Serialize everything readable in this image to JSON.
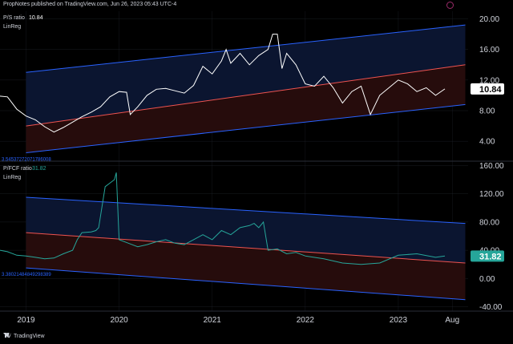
{
  "header": {
    "text": "PropNotes published on TradingView.com, Jun 26, 2023 05:43 UTC-4"
  },
  "footer": {
    "brand": "TradingView"
  },
  "colors": {
    "background": "#000000",
    "line": "#ffffff",
    "line2": "#26a69a",
    "upper_band": "#2962ff",
    "mid_band": "#ef5350",
    "upper_fill": "#0b1530",
    "lower_fill": "#260c0c",
    "grid": "#2a2e39",
    "axis_text": "#d1d4dc"
  },
  "chart_data": [
    {
      "type": "line",
      "title": "P/S ratio",
      "value_label": "10.84",
      "indicator": "LinReg",
      "lower_band_label": "3.54537272071786008",
      "y_ticks": [
        4,
        8,
        12,
        16,
        20
      ],
      "y_tick_labels": [
        "4.00",
        "8.00",
        "12.00",
        "16.00",
        "20.00"
      ],
      "ylim": [
        1.5,
        21
      ],
      "current_value": 10.84,
      "band": {
        "start": 2019.0,
        "end": 2023.72,
        "upper": [
          13.0,
          19.2
        ],
        "mid": [
          6.0,
          14.0
        ],
        "lower": [
          2.5,
          8.8
        ]
      },
      "series": [
        {
          "x": [
            2018.72,
            2018.8,
            2018.9,
            2019.0,
            2019.1,
            2019.2,
            2019.3,
            2019.4,
            2019.5,
            2019.6,
            2019.7,
            2019.8,
            2019.9,
            2020.0,
            2020.08,
            2020.12,
            2020.2,
            2020.3,
            2020.4,
            2020.5,
            2020.6,
            2020.7,
            2020.8,
            2020.9,
            2021.0,
            2021.1,
            2021.15,
            2021.2,
            2021.3,
            2021.4,
            2021.5,
            2021.6,
            2021.65,
            2021.7,
            2021.75,
            2021.8,
            2021.9,
            2022.0,
            2022.1,
            2022.2,
            2022.3,
            2022.4,
            2022.5,
            2022.6,
            2022.7,
            2022.8,
            2022.9,
            2023.0,
            2023.1,
            2023.2,
            2023.3,
            2023.4,
            2023.5
          ],
          "y": [
            9.9,
            9.8,
            8.2,
            7.3,
            6.8,
            5.9,
            5.2,
            5.8,
            6.5,
            7.2,
            7.8,
            8.5,
            9.8,
            10.5,
            10.4,
            7.5,
            8.5,
            10.0,
            10.8,
            10.9,
            10.6,
            10.3,
            11.3,
            13.8,
            12.8,
            14.5,
            16.0,
            14.2,
            15.5,
            14.0,
            15.2,
            16.0,
            18.0,
            18.0,
            13.5,
            15.5,
            14.0,
            11.5,
            11.2,
            12.5,
            11.0,
            9.0,
            10.5,
            11.2,
            7.5,
            10.0,
            11.0,
            12.0,
            11.5,
            10.5,
            11.0,
            10.0,
            10.84
          ]
        }
      ]
    },
    {
      "type": "line",
      "title": "P/FCF ratio",
      "value_label": "31.82",
      "indicator": "LinReg",
      "lower_band_label": "3.38021484849298389",
      "y_ticks": [
        -40,
        0,
        40,
        80,
        120,
        160
      ],
      "y_tick_labels": [
        "-40.00",
        "0.00",
        "40.00",
        "80.00",
        "120.00",
        "160.00"
      ],
      "ylim": [
        -45,
        165
      ],
      "current_value": 31.82,
      "band": {
        "start": 2019.0,
        "end": 2023.72,
        "upper": [
          115,
          78
        ],
        "mid": [
          65,
          22
        ],
        "lower": [
          15,
          -30
        ]
      },
      "series": [
        {
          "x": [
            2018.72,
            2018.8,
            2018.9,
            2019.0,
            2019.1,
            2019.2,
            2019.3,
            2019.4,
            2019.5,
            2019.55,
            2019.6,
            2019.7,
            2019.75,
            2019.78,
            2019.85,
            2019.9,
            2019.95,
            2019.97,
            2020.0,
            2020.1,
            2020.2,
            2020.3,
            2020.4,
            2020.5,
            2020.6,
            2020.7,
            2020.8,
            2020.9,
            2021.0,
            2021.1,
            2021.2,
            2021.3,
            2021.4,
            2021.45,
            2021.5,
            2021.55,
            2021.6,
            2021.7,
            2021.8,
            2021.9,
            2022.0,
            2022.2,
            2022.4,
            2022.6,
            2022.8,
            2023.0,
            2023.2,
            2023.4,
            2023.5
          ],
          "y": [
            40,
            38,
            33,
            32,
            30,
            28,
            29,
            35,
            40,
            55,
            65,
            66,
            68,
            72,
            130,
            135,
            140,
            150,
            55,
            50,
            45,
            48,
            52,
            55,
            50,
            48,
            55,
            62,
            55,
            68,
            62,
            72,
            75,
            78,
            72,
            80,
            40,
            42,
            35,
            37,
            32,
            28,
            22,
            20,
            22,
            33,
            35,
            30,
            31.82
          ]
        }
      ]
    }
  ],
  "x_axis": {
    "ticks": [
      2019,
      2020,
      2021,
      2022,
      2023,
      2023.58
    ],
    "labels": [
      "2019",
      "2020",
      "2021",
      "2022",
      "2023",
      "Aug"
    ]
  }
}
